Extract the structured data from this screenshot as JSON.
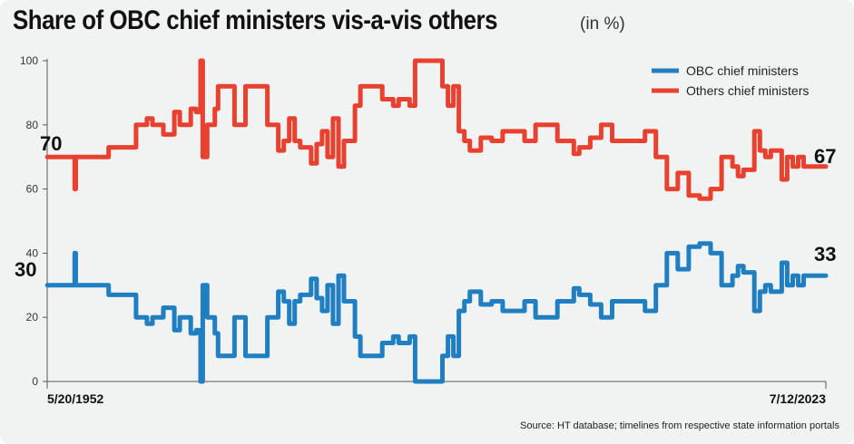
{
  "title": "Share of OBC chief ministers vis-a-vis others",
  "subtitle": "(in %)",
  "source": "Source: HT database; timelines from respective state information portals",
  "colors": {
    "obc": "#1f7fc0",
    "others": "#e8412f",
    "background": "#f1f2f2"
  },
  "chart_data": {
    "type": "line",
    "title": "Share of OBC chief ministers vis-a-vis others",
    "subtitle": "(in %)",
    "ylim": [
      0,
      100
    ],
    "yticks": [
      0,
      20,
      40,
      60,
      80,
      100
    ],
    "x_start_label": "5/20/1952",
    "x_end_label": "7/12/2023",
    "x_range": [
      "1952-05-20",
      "2023-07-12"
    ],
    "grid": false,
    "legend_placement": "top-right",
    "end_labels": {
      "start": "70",
      "end": "67",
      "obc_start": "30",
      "obc_end": "33"
    },
    "series": [
      {
        "name": "OBC chief ministers",
        "color": "#1f7fc0",
        "x": [
          1952.4,
          1954.0,
          1954.9,
          1955.0,
          1957.5,
          1958.0,
          1960.5,
          1961.5,
          1962.0,
          1963.0,
          1964.0,
          1964.5,
          1965.5,
          1966.0,
          1966.4,
          1966.6,
          1967.0,
          1967.7,
          1968.0,
          1968.5,
          1969.5,
          1970.5,
          1972.5,
          1973.5,
          1974.0,
          1974.5,
          1975.0,
          1975.5,
          1976.5,
          1977.0,
          1977.5,
          1978.0,
          1978.5,
          1979.0,
          1979.5,
          1980.5,
          1981.0,
          1982.0,
          1983.0,
          1984.0,
          1984.5,
          1985.5,
          1986.0,
          1987.0,
          1988.0,
          1988.5,
          1989.0,
          1989.5,
          1990.0,
          1990.5,
          1991.0,
          1992.0,
          1993.0,
          1994.0,
          1996.0,
          1997.0,
          1999.0,
          2000.5,
          2001.0,
          2002.0,
          2003.0,
          2004.0,
          2005.0,
          2006.0,
          2007.0,
          2008.0,
          2009.0,
          2010.0,
          2010.5,
          2011.0,
          2012.0,
          2013.0,
          2014.0,
          2015.0,
          2015.5,
          2016.0,
          2017.0,
          2017.5,
          2018.0,
          2018.5,
          2019.0,
          2019.5,
          2020.0,
          2020.5,
          2021.0,
          2021.5,
          2022.0,
          2022.5,
          2023.0,
          2023.5
        ],
        "values": [
          30,
          30,
          40,
          30,
          30,
          27,
          20,
          18,
          20,
          23,
          16,
          20,
          15,
          16,
          0,
          30,
          20,
          15,
          8,
          8,
          20,
          8,
          20,
          28,
          25,
          18,
          25,
          27,
          32,
          26,
          22,
          30,
          18,
          33,
          25,
          14,
          8,
          8,
          12,
          14,
          12,
          14,
          0,
          0,
          0,
          8,
          14,
          8,
          22,
          25,
          28,
          24,
          25,
          22,
          25,
          20,
          25,
          29,
          27,
          24,
          20,
          25,
          25,
          25,
          22,
          30,
          40,
          35,
          35,
          42,
          43,
          40,
          30,
          33,
          36,
          34,
          22,
          28,
          30,
          28,
          28,
          37,
          30,
          33,
          30,
          33,
          33,
          33,
          33,
          33
        ]
      },
      {
        "name": "Others chief ministers",
        "color": "#e8412f",
        "x": [
          1952.4,
          1954.0,
          1954.9,
          1955.0,
          1957.5,
          1958.0,
          1960.5,
          1961.5,
          1962.0,
          1963.0,
          1964.0,
          1964.5,
          1965.5,
          1966.0,
          1966.4,
          1966.6,
          1967.0,
          1967.7,
          1968.0,
          1968.5,
          1969.5,
          1970.5,
          1972.5,
          1973.5,
          1974.0,
          1974.5,
          1975.0,
          1975.5,
          1976.5,
          1977.0,
          1977.5,
          1978.0,
          1978.5,
          1979.0,
          1979.5,
          1980.5,
          1981.0,
          1982.0,
          1983.0,
          1984.0,
          1984.5,
          1985.5,
          1986.0,
          1987.0,
          1988.0,
          1988.5,
          1989.0,
          1989.5,
          1990.0,
          1990.5,
          1991.0,
          1992.0,
          1993.0,
          1994.0,
          1996.0,
          1997.0,
          1999.0,
          2000.5,
          2001.0,
          2002.0,
          2003.0,
          2004.0,
          2005.0,
          2006.0,
          2007.0,
          2008.0,
          2009.0,
          2010.0,
          2010.5,
          2011.0,
          2012.0,
          2013.0,
          2014.0,
          2015.0,
          2015.5,
          2016.0,
          2017.0,
          2017.5,
          2018.0,
          2018.5,
          2019.0,
          2019.5,
          2020.0,
          2020.5,
          2021.0,
          2021.5,
          2022.0,
          2022.5,
          2023.0,
          2023.5
        ],
        "values": [
          70,
          70,
          60,
          70,
          70,
          73,
          80,
          82,
          80,
          77,
          84,
          80,
          85,
          84,
          100,
          70,
          80,
          85,
          92,
          92,
          80,
          92,
          80,
          72,
          75,
          82,
          75,
          73,
          68,
          74,
          78,
          70,
          82,
          67,
          75,
          86,
          92,
          92,
          88,
          86,
          88,
          86,
          100,
          100,
          100,
          92,
          86,
          92,
          78,
          75,
          72,
          76,
          75,
          78,
          75,
          80,
          75,
          71,
          73,
          76,
          80,
          75,
          75,
          75,
          78,
          70,
          60,
          65,
          65,
          58,
          57,
          60,
          70,
          67,
          64,
          66,
          78,
          72,
          70,
          72,
          72,
          63,
          70,
          67,
          70,
          67,
          67,
          67,
          67,
          67
        ]
      }
    ]
  }
}
